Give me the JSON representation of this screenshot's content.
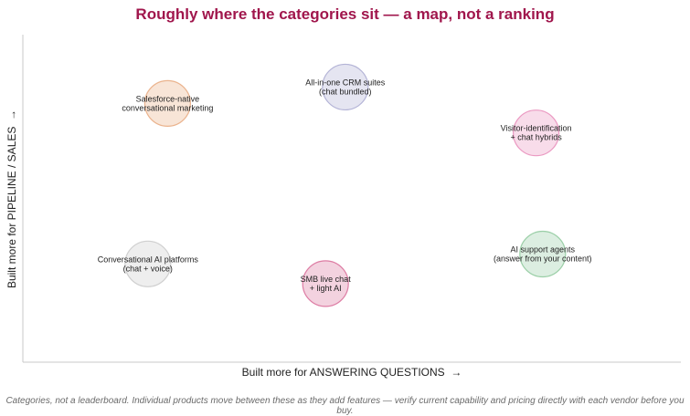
{
  "chart_data": {
    "type": "scatter",
    "title": "Roughly where the categories sit — a map, not a ranking",
    "xlabel": "Built more for ANSWERING QUESTIONS  →",
    "ylabel": "Built more for PIPELINE / SALES  →",
    "xlim": [
      0,
      10
    ],
    "ylim": [
      0,
      10
    ],
    "grid": false,
    "points": [
      {
        "label": [
          "Salesforce-native",
          "conversational marketing"
        ],
        "x": 2.2,
        "y": 7.9,
        "color": "#e8a87c"
      },
      {
        "label": [
          "All-in-one CRM suites",
          "(chat bundled)"
        ],
        "x": 4.9,
        "y": 8.4,
        "color": "#a8a8d0"
      },
      {
        "label": [
          "Visitor-identification",
          "+ chat hybrids"
        ],
        "x": 7.8,
        "y": 7.0,
        "color": "#e88ab8"
      },
      {
        "label": [
          "Conversational AI platforms",
          "(chat + voice)"
        ],
        "x": 1.9,
        "y": 3.0,
        "color": "#c8c8c8"
      },
      {
        "label": [
          "SMB live chat",
          "+ light AI"
        ],
        "x": 4.6,
        "y": 2.4,
        "color": "#d86a96"
      },
      {
        "label": [
          "AI support agents",
          "(answer from your content)"
        ],
        "x": 7.9,
        "y": 3.3,
        "color": "#8cc89a"
      }
    ]
  },
  "footnote": "Categories, not a leaderboard. Individual products move between these as they add features — verify current capability and pricing directly with each vendor before you buy."
}
